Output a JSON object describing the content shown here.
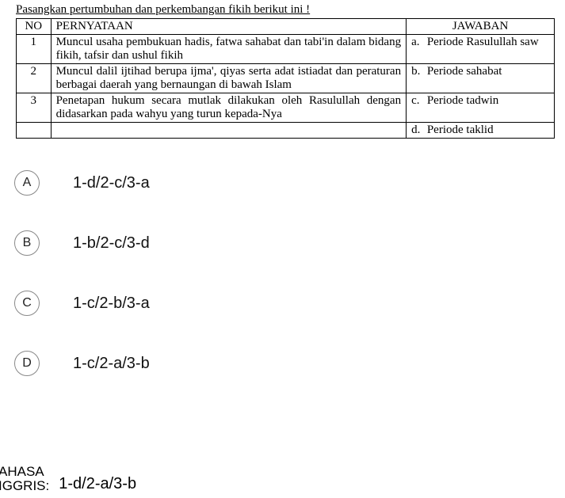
{
  "instruction": "Pasangkan pertumbuhan dan perkembangan fikih berikut ini !",
  "table": {
    "headers": {
      "no": "NO",
      "stmt": "PERNYATAAN",
      "ans": "JAWABAN"
    },
    "rows": [
      {
        "no": "1",
        "stmt": "Muncul usaha pembukuan hadis, fatwa sahabat dan tabi'in dalam bidang fikih, tafsir dan ushul fikih",
        "ans_idx": "a.",
        "ans_text": "Periode Rasulullah saw"
      },
      {
        "no": "2",
        "stmt": "Muncul dalil ijtihad berupa ijma', qiyas serta adat istiadat dan peraturan berbagai daerah yang bernaungan di bawah Islam",
        "ans_idx": "b.",
        "ans_text": "Periode sahabat"
      },
      {
        "no": "3",
        "stmt": "Penetapan hukum secara mutlak dilakukan oleh Rasulullah dengan didasarkan pada wahyu yang turun kepada-Nya",
        "ans_idx": "c.",
        "ans_text": "Periode tadwin"
      },
      {
        "no": "",
        "stmt": "",
        "ans_idx": "d.",
        "ans_text": "Periode taklid"
      }
    ]
  },
  "options": [
    {
      "letter": "A",
      "text": "1-d/2-c/3-a"
    },
    {
      "letter": "B",
      "text": "1-b/2-c/3-d"
    },
    {
      "letter": "C",
      "text": "1-c/2-b/3-a"
    },
    {
      "letter": "D",
      "text": "1-c/2-a/3-b"
    }
  ],
  "footer": {
    "label_line1": "AHASA",
    "label_line2": "IGGRIS:",
    "text": "1-d/2-a/3-b"
  }
}
